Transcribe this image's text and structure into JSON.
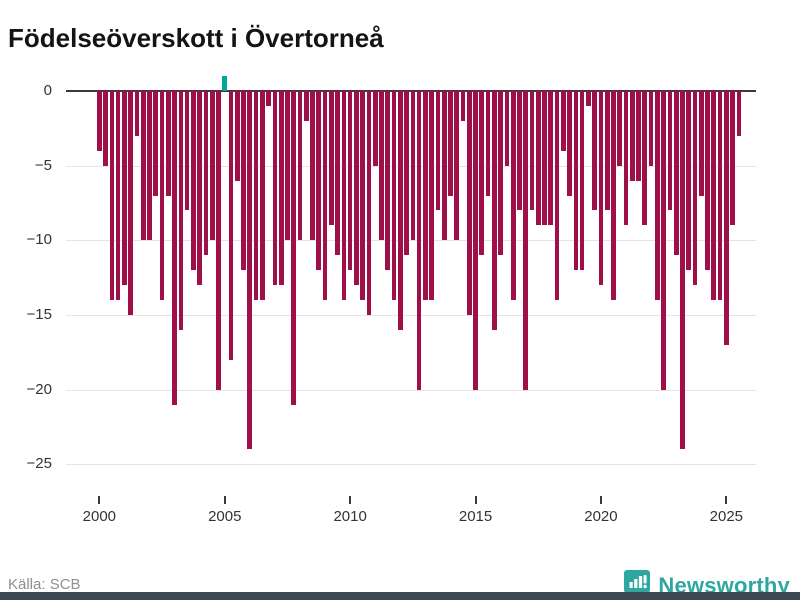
{
  "title": "Födelseöverskott i Övertorneå",
  "source": "Källa: SCB",
  "brand": {
    "name": "Newsworthy",
    "color": "#2fa7a1"
  },
  "chart_data": {
    "type": "bar",
    "title": "Födelseöverskott i Övertorneå",
    "xlabel": "",
    "ylabel": "",
    "frequency": "quarterly",
    "x_start": "2000-Q1",
    "x_end": "2025-Q3",
    "x_tick_labels": [
      "2000",
      "2005",
      "2010",
      "2015",
      "2020",
      "2025"
    ],
    "x_tick_indices": [
      0,
      20,
      40,
      60,
      80,
      100
    ],
    "y_tick_labels": [
      "0",
      "−5",
      "−10",
      "−15",
      "−20",
      "−25"
    ],
    "y_ticks": [
      0,
      -5,
      -10,
      -15,
      -20,
      -25
    ],
    "ylim": [
      -25,
      1
    ],
    "grid": "horizontal",
    "legend": "none",
    "colors": {
      "negative": "#9e1047",
      "positive": "#00a79b"
    },
    "values": [
      -4,
      -5,
      -14,
      -14,
      -13,
      -15,
      -3,
      -10,
      -10,
      -7,
      -14,
      -7,
      -21,
      -16,
      -8,
      -12,
      -13,
      -11,
      -10,
      -20,
      1,
      -18,
      -6,
      -12,
      -24,
      -14,
      -14,
      -1,
      -13,
      -13,
      -10,
      -21,
      -10,
      -2,
      -10,
      -12,
      -14,
      -9,
      -11,
      -14,
      -12,
      -13,
      -14,
      -15,
      -5,
      -10,
      -12,
      -14,
      -16,
      -11,
      -10,
      -20,
      -14,
      -14,
      -8,
      -10,
      -7,
      -10,
      -2,
      -15,
      -20,
      -11,
      -7,
      -16,
      -11,
      -5,
      -14,
      -8,
      -20,
      -8,
      -9,
      -9,
      -9,
      -14,
      -4,
      -7,
      -12,
      -12,
      -1,
      -8,
      -13,
      -8,
      -14,
      -5,
      -9,
      -6,
      -6,
      -9,
      -5,
      -14,
      -20,
      -8,
      -11,
      -24,
      -12,
      -13,
      -7,
      -12,
      -14,
      -14,
      -17,
      -9,
      -3
    ]
  }
}
